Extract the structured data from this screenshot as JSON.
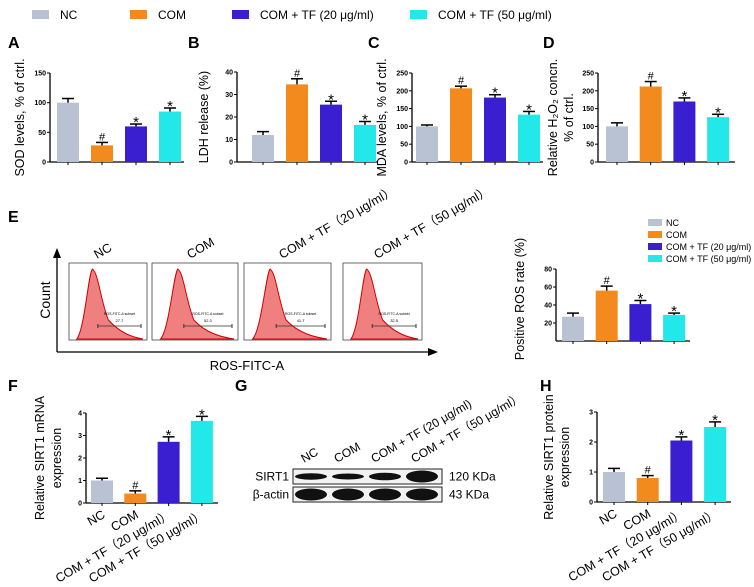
{
  "legend": {
    "items": [
      {
        "label": "NC",
        "color": "#b8c2d3"
      },
      {
        "label": "COM",
        "color": "#f28a1e"
      },
      {
        "label": "COM + TF (20 μg/ml)",
        "color": "#3a1fd0"
      },
      {
        "label": "COM + TF (50 μg/ml)",
        "color": "#22e8ea"
      }
    ]
  },
  "panel_labels": [
    "A",
    "B",
    "C",
    "D",
    "E",
    "F",
    "G",
    "H"
  ],
  "flow": {
    "panel_titles": [
      "NC",
      "COM",
      "COM + TF（20 μg/ml）",
      "COM + TF（50 μg/ml）"
    ],
    "y_label": "Count",
    "x_label": "ROS-FITC-A",
    "gate_name": "ROS-FITC-A subset",
    "gate_values": [
      "27.7",
      "52.3",
      "41.7",
      "32.5"
    ],
    "histogram_color": "#f08080"
  },
  "western": {
    "columns": [
      "NC",
      "COM",
      "COM + TF (20 μg/ml)",
      "COM + TF（50 μg/ml）"
    ],
    "rows": [
      {
        "protein": "SIRT1",
        "size": "120 KDa"
      },
      {
        "protein": "β-actin",
        "size": "43 KDa"
      }
    ]
  },
  "chart_data": [
    {
      "id": "A",
      "type": "bar",
      "ylabel": "SOD levels, % of ctrl.",
      "ylim": [
        0,
        150
      ],
      "yticks": [
        0,
        50,
        100,
        150
      ],
      "categories": [
        "NC",
        "COM",
        "COM + TF (20 μg/ml)",
        "COM + TF (50 μg/ml)"
      ],
      "values": [
        100,
        28,
        60,
        85
      ],
      "errors": [
        7,
        5,
        4,
        6
      ],
      "markers": [
        "",
        "#",
        "*",
        "*"
      ]
    },
    {
      "id": "B",
      "type": "bar",
      "ylabel": "LDH release (%)",
      "ylim": [
        0,
        40
      ],
      "yticks": [
        0,
        10,
        20,
        30,
        40
      ],
      "categories": [
        "NC",
        "COM",
        "COM + TF (20 μg/ml)",
        "COM + TF (50 μg/ml)"
      ],
      "values": [
        12,
        34.5,
        25.5,
        16.5
      ],
      "errors": [
        1.5,
        2.5,
        1.5,
        1.5
      ],
      "markers": [
        "",
        "#",
        "*",
        "*"
      ]
    },
    {
      "id": "C",
      "type": "bar",
      "ylabel": "MDA levels, % of ctrl.",
      "ylim": [
        0,
        250
      ],
      "yticks": [
        0,
        50,
        100,
        150,
        200,
        250
      ],
      "categories": [
        "NC",
        "COM",
        "COM + TF (20 μg/ml)",
        "COM + TF (50 μg/ml)"
      ],
      "values": [
        100,
        207,
        181,
        133
      ],
      "errors": [
        4,
        6,
        8,
        9
      ],
      "markers": [
        "",
        "#",
        "*",
        "*"
      ]
    },
    {
      "id": "D",
      "type": "bar",
      "ylabel": [
        "Relative H₂O₂ concn.",
        "% of ctrl."
      ],
      "ylim": [
        0,
        250
      ],
      "yticks": [
        0,
        50,
        100,
        150,
        200,
        250
      ],
      "categories": [
        "NC",
        "COM",
        "COM + TF (20 μg/ml)",
        "COM + TF (50 μg/ml)"
      ],
      "values": [
        100,
        212,
        170,
        126
      ],
      "errors": [
        10,
        14,
        10,
        8
      ],
      "markers": [
        "",
        "#",
        "*",
        "*"
      ]
    },
    {
      "id": "E",
      "type": "bar",
      "ylabel": "Positive ROS rate (%)",
      "ylim": [
        0,
        80
      ],
      "yticks": [
        20,
        40,
        60,
        80
      ],
      "categories": [
        "NC",
        "COM",
        "COM + TF (20 μg/ml)",
        "COM + TF (50 μg/ml)"
      ],
      "values": [
        27,
        56,
        41,
        29
      ],
      "errors": [
        4,
        5,
        4,
        2
      ],
      "markers": [
        "",
        "#",
        "*",
        "*"
      ]
    },
    {
      "id": "F",
      "type": "bar",
      "ylabel": [
        "Relative SIRT1 mRNA",
        "expression"
      ],
      "ylim": [
        0,
        4
      ],
      "yticks": [
        0,
        1,
        2,
        3,
        4
      ],
      "categories": [
        "NC",
        "COM",
        "COM + TF（20 μg/ml）",
        "COM + TF（50 μg/ml）"
      ],
      "show_xticks": true,
      "values": [
        1.0,
        0.42,
        2.72,
        3.65
      ],
      "errors": [
        0.1,
        0.12,
        0.22,
        0.2
      ],
      "markers": [
        "",
        "#",
        "*",
        "*"
      ]
    },
    {
      "id": "H",
      "type": "bar",
      "ylabel": [
        "Relative SIRT1 protein",
        "expression"
      ],
      "ylim": [
        0,
        3
      ],
      "yticks": [
        0,
        1,
        2,
        3
      ],
      "categories": [
        "NC",
        "COM",
        "COM + TF（20 μg/ml）",
        "COM + TF（50 μg/ml）"
      ],
      "show_xticks": true,
      "values": [
        1.0,
        0.8,
        2.05,
        2.5
      ],
      "errors": [
        0.12,
        0.08,
        0.12,
        0.17
      ],
      "markers": [
        "",
        "#",
        "*",
        "*"
      ]
    }
  ]
}
